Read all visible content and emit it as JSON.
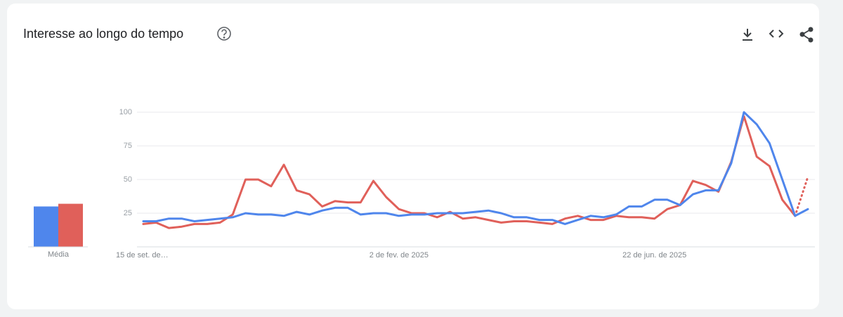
{
  "chart_data": {
    "type": "line",
    "title": "Interesse ao longo do tempo",
    "categories": [
      "15 de set. de…",
      null,
      null,
      null,
      null,
      null,
      null,
      null,
      null,
      null,
      null,
      null,
      null,
      null,
      null,
      null,
      null,
      null,
      null,
      null,
      "2 de fev. de 2025",
      null,
      null,
      null,
      null,
      null,
      null,
      null,
      null,
      null,
      null,
      null,
      null,
      null,
      null,
      null,
      null,
      null,
      null,
      null,
      "22 de jun. de 2025",
      null,
      null,
      null,
      null,
      null,
      null,
      null,
      null,
      null,
      null,
      null,
      null
    ],
    "series": [
      {
        "color": "#4f86ec",
        "values": [
          19,
          19,
          21,
          21,
          19,
          20,
          21,
          22,
          25,
          24,
          24,
          23,
          26,
          24,
          27,
          29,
          29,
          24,
          25,
          25,
          23,
          24,
          24,
          25,
          25,
          25,
          26,
          27,
          25,
          22,
          22,
          20,
          20,
          17,
          20,
          23,
          22,
          24,
          30,
          30,
          35,
          35,
          31,
          39,
          42,
          42,
          62,
          100,
          91,
          77,
          50,
          23,
          28
        ]
      },
      {
        "color": "#e0605a",
        "partial_last": true,
        "values": [
          17,
          18,
          14,
          15,
          17,
          17,
          18,
          24,
          50,
          50,
          45,
          61,
          42,
          39,
          30,
          34,
          33,
          33,
          49,
          37,
          28,
          25,
          25,
          22,
          26,
          21,
          22,
          20,
          18,
          19,
          19,
          18,
          17,
          21,
          23,
          20,
          20,
          23,
          22,
          22,
          21,
          28,
          31,
          49,
          46,
          41,
          63,
          97,
          67,
          60,
          35,
          23,
          52
        ]
      }
    ],
    "averages": {
      "label": "Média",
      "values": [
        30,
        32
      ]
    },
    "ylim": [
      0,
      100
    ],
    "yticks": [
      25,
      50,
      75,
      100
    ],
    "grid": true
  }
}
